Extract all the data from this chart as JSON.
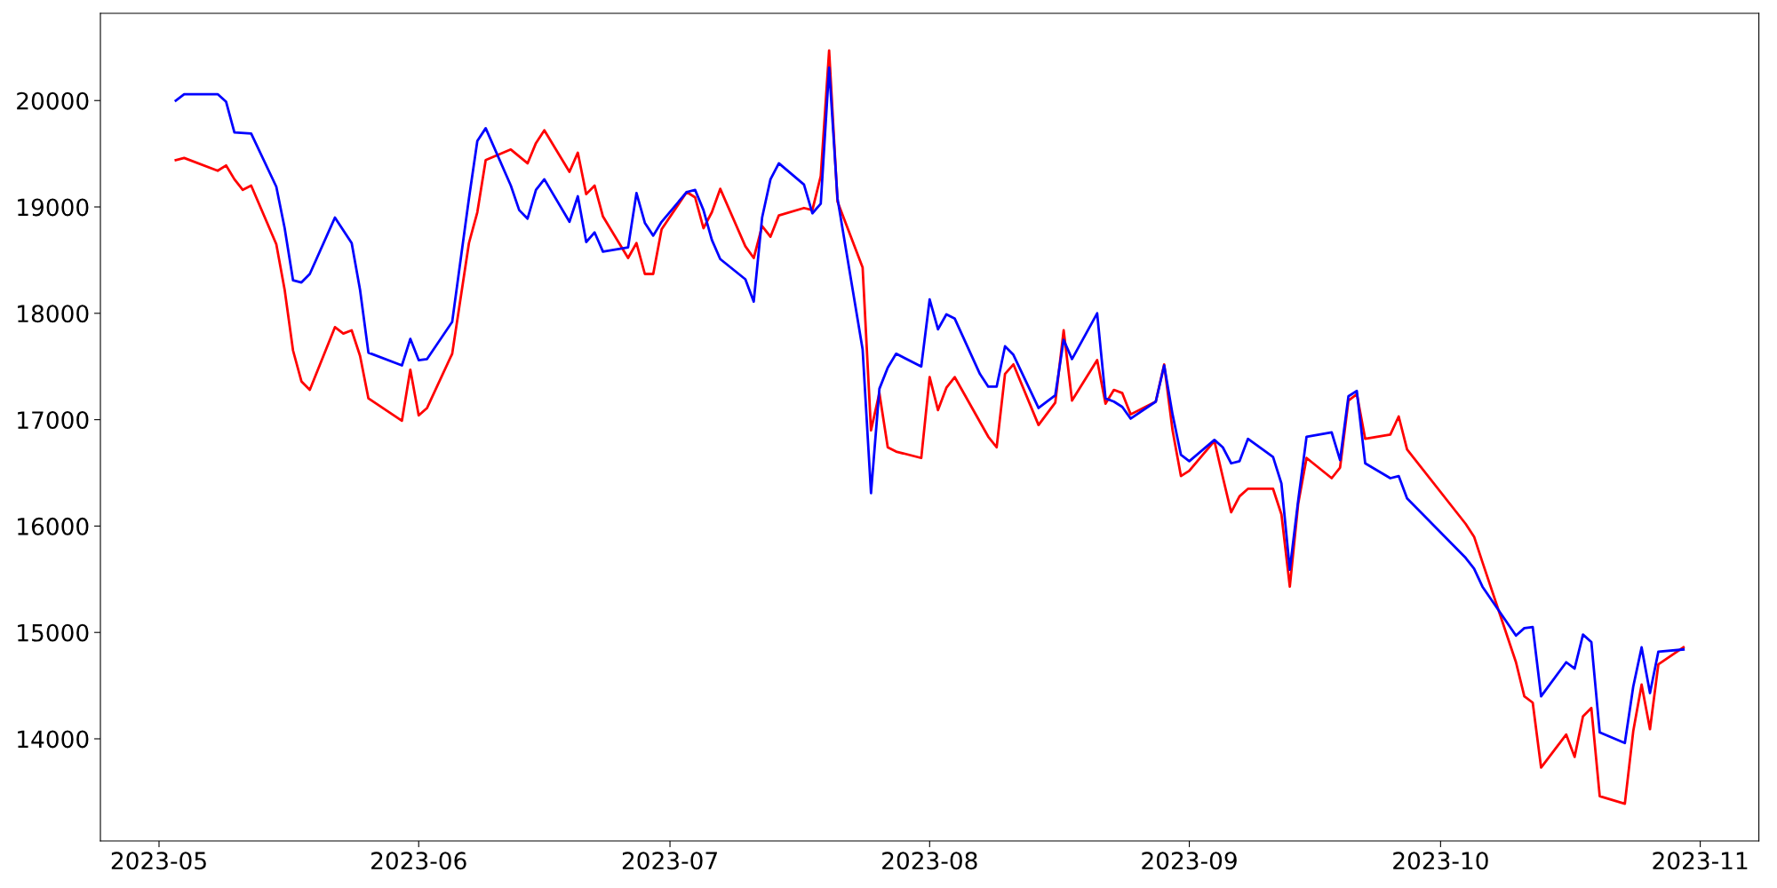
{
  "chart_data": {
    "type": "line",
    "xlim": [
      "2023-04-24",
      "2023-11-08"
    ],
    "xticks": [
      {
        "value": "2023-05-01",
        "label": "2023-05"
      },
      {
        "value": "2023-06-01",
        "label": "2023-06"
      },
      {
        "value": "2023-07-01",
        "label": "2023-07"
      },
      {
        "value": "2023-08-01",
        "label": "2023-08"
      },
      {
        "value": "2023-09-01",
        "label": "2023-09"
      },
      {
        "value": "2023-10-01",
        "label": "2023-10"
      },
      {
        "value": "2023-11-01",
        "label": "2023-11"
      }
    ],
    "ylim": [
      13040,
      20820
    ],
    "yticks": [
      14000,
      15000,
      16000,
      17000,
      18000,
      19000,
      20000
    ],
    "grid": false,
    "marker": "none",
    "line_style": "solid",
    "series": [
      {
        "color": "#ff0000",
        "x": [
          "2023-05-03",
          "2023-05-04",
          "2023-05-08",
          "2023-05-09",
          "2023-05-10",
          "2023-05-11",
          "2023-05-12",
          "2023-05-15",
          "2023-05-16",
          "2023-05-17",
          "2023-05-18",
          "2023-05-19",
          "2023-05-22",
          "2023-05-23",
          "2023-05-24",
          "2023-05-25",
          "2023-05-26",
          "2023-05-30",
          "2023-05-31",
          "2023-06-01",
          "2023-06-02",
          "2023-06-05",
          "2023-06-07",
          "2023-06-08",
          "2023-06-09",
          "2023-06-12",
          "2023-06-14",
          "2023-06-15",
          "2023-06-16",
          "2023-06-19",
          "2023-06-20",
          "2023-06-21",
          "2023-06-22",
          "2023-06-23",
          "2023-06-26",
          "2023-06-27",
          "2023-06-28",
          "2023-06-29",
          "2023-06-30",
          "2023-07-03",
          "2023-07-04",
          "2023-07-05",
          "2023-07-06",
          "2023-07-07",
          "2023-07-10",
          "2023-07-11",
          "2023-07-12",
          "2023-07-13",
          "2023-07-14",
          "2023-07-17",
          "2023-07-18",
          "2023-07-19",
          "2023-07-20",
          "2023-07-21",
          "2023-07-24",
          "2023-07-25",
          "2023-07-26",
          "2023-07-27",
          "2023-07-28",
          "2023-07-31",
          "2023-08-01",
          "2023-08-02",
          "2023-08-03",
          "2023-08-04",
          "2023-08-08",
          "2023-08-09",
          "2023-08-10",
          "2023-08-11",
          "2023-08-14",
          "2023-08-16",
          "2023-08-17",
          "2023-08-18",
          "2023-08-21",
          "2023-08-22",
          "2023-08-23",
          "2023-08-24",
          "2023-08-25",
          "2023-08-28",
          "2023-08-29",
          "2023-08-30",
          "2023-08-31",
          "2023-09-01",
          "2023-09-04",
          "2023-09-05",
          "2023-09-06",
          "2023-09-07",
          "2023-09-08",
          "2023-09-11",
          "2023-09-12",
          "2023-09-13",
          "2023-09-14",
          "2023-09-15",
          "2023-09-18",
          "2023-09-19",
          "2023-09-20",
          "2023-09-21",
          "2023-09-22",
          "2023-09-25",
          "2023-09-26",
          "2023-09-27",
          "2023-10-04",
          "2023-10-05",
          "2023-10-06",
          "2023-10-10",
          "2023-10-11",
          "2023-10-12",
          "2023-10-13",
          "2023-10-16",
          "2023-10-17",
          "2023-10-18",
          "2023-10-19",
          "2023-10-20",
          "2023-10-23",
          "2023-10-24",
          "2023-10-25",
          "2023-10-26",
          "2023-10-27",
          "2023-10-30"
        ],
        "values": [
          19440,
          19460,
          19340,
          19390,
          19260,
          19160,
          19200,
          18650,
          18220,
          17650,
          17360,
          17280,
          17870,
          17810,
          17840,
          17600,
          17200,
          16990,
          17470,
          17040,
          17110,
          17620,
          18660,
          18950,
          19440,
          19540,
          19410,
          19600,
          19720,
          19330,
          19510,
          19120,
          19200,
          18910,
          18520,
          18660,
          18370,
          18370,
          18790,
          19140,
          19090,
          18800,
          18950,
          19170,
          18630,
          18520,
          18820,
          18720,
          18920,
          18990,
          18970,
          19290,
          20470,
          19050,
          18430,
          16900,
          17250,
          16740,
          16700,
          16640,
          17400,
          17090,
          17300,
          17400,
          16840,
          16740,
          17430,
          17520,
          16950,
          17160,
          17840,
          17180,
          17560,
          17150,
          17280,
          17250,
          17050,
          17170,
          17520,
          16900,
          16470,
          16520,
          16800,
          16460,
          16130,
          16280,
          16350,
          16350,
          16110,
          15430,
          16210,
          16640,
          16450,
          16550,
          17180,
          17240,
          16820,
          16860,
          17030,
          16720,
          16020,
          15900,
          15660,
          14720,
          14400,
          14340,
          13730,
          14040,
          13830,
          14210,
          14290,
          13460,
          13390,
          14070,
          14510,
          14090,
          14700,
          14860
        ]
      },
      {
        "color": "#0000ff",
        "x": [
          "2023-05-03",
          "2023-05-04",
          "2023-05-08",
          "2023-05-09",
          "2023-05-10",
          "2023-05-12",
          "2023-05-15",
          "2023-05-16",
          "2023-05-17",
          "2023-05-18",
          "2023-05-19",
          "2023-05-22",
          "2023-05-24",
          "2023-05-25",
          "2023-05-26",
          "2023-05-30",
          "2023-05-31",
          "2023-06-01",
          "2023-06-02",
          "2023-06-05",
          "2023-06-07",
          "2023-06-08",
          "2023-06-09",
          "2023-06-12",
          "2023-06-13",
          "2023-06-14",
          "2023-06-15",
          "2023-06-16",
          "2023-06-19",
          "2023-06-20",
          "2023-06-21",
          "2023-06-22",
          "2023-06-23",
          "2023-06-26",
          "2023-06-27",
          "2023-06-28",
          "2023-06-29",
          "2023-06-30",
          "2023-07-03",
          "2023-07-04",
          "2023-07-05",
          "2023-07-06",
          "2023-07-07",
          "2023-07-10",
          "2023-07-11",
          "2023-07-12",
          "2023-07-13",
          "2023-07-14",
          "2023-07-17",
          "2023-07-18",
          "2023-07-19",
          "2023-07-20",
          "2023-07-21",
          "2023-07-24",
          "2023-07-25",
          "2023-07-26",
          "2023-07-27",
          "2023-07-28",
          "2023-07-31",
          "2023-08-01",
          "2023-08-02",
          "2023-08-03",
          "2023-08-04",
          "2023-08-07",
          "2023-08-08",
          "2023-08-09",
          "2023-08-10",
          "2023-08-11",
          "2023-08-14",
          "2023-08-16",
          "2023-08-17",
          "2023-08-18",
          "2023-08-21",
          "2023-08-22",
          "2023-08-23",
          "2023-08-24",
          "2023-08-25",
          "2023-08-28",
          "2023-08-29",
          "2023-08-30",
          "2023-08-31",
          "2023-09-01",
          "2023-09-04",
          "2023-09-05",
          "2023-09-06",
          "2023-09-07",
          "2023-09-08",
          "2023-09-11",
          "2023-09-12",
          "2023-09-13",
          "2023-09-14",
          "2023-09-15",
          "2023-09-18",
          "2023-09-19",
          "2023-09-20",
          "2023-09-21",
          "2023-09-22",
          "2023-09-25",
          "2023-09-26",
          "2023-09-27",
          "2023-10-04",
          "2023-10-05",
          "2023-10-06",
          "2023-10-10",
          "2023-10-11",
          "2023-10-12",
          "2023-10-13",
          "2023-10-16",
          "2023-10-17",
          "2023-10-18",
          "2023-10-19",
          "2023-10-20",
          "2023-10-23",
          "2023-10-24",
          "2023-10-25",
          "2023-10-26",
          "2023-10-27",
          "2023-10-30"
        ],
        "values": [
          20000,
          20060,
          20060,
          19990,
          19700,
          19690,
          19190,
          18800,
          18310,
          18290,
          18370,
          18900,
          18660,
          18220,
          17630,
          17510,
          17760,
          17560,
          17570,
          17920,
          19080,
          19620,
          19740,
          19200,
          18970,
          18890,
          19160,
          19260,
          18860,
          19100,
          18670,
          18760,
          18580,
          18620,
          19130,
          18850,
          18730,
          18860,
          19140,
          19160,
          18970,
          18690,
          18510,
          18320,
          18110,
          18900,
          19260,
          19410,
          19210,
          18940,
          19030,
          20310,
          19080,
          17660,
          16310,
          17290,
          17490,
          17620,
          17500,
          18130,
          17850,
          17990,
          17950,
          17430,
          17310,
          17310,
          17690,
          17610,
          17110,
          17230,
          17750,
          17570,
          18000,
          17200,
          17170,
          17120,
          17010,
          17170,
          17510,
          17050,
          16670,
          16610,
          16810,
          16740,
          16590,
          16610,
          16820,
          16650,
          16400,
          15590,
          16240,
          16840,
          16880,
          16620,
          17220,
          17270,
          16590,
          16450,
          16470,
          16260,
          15700,
          15600,
          15430,
          14970,
          15040,
          15050,
          14400,
          14720,
          14660,
          14980,
          14910,
          14060,
          13960,
          14490,
          14860,
          14430,
          14820,
          14840
        ]
      }
    ]
  }
}
